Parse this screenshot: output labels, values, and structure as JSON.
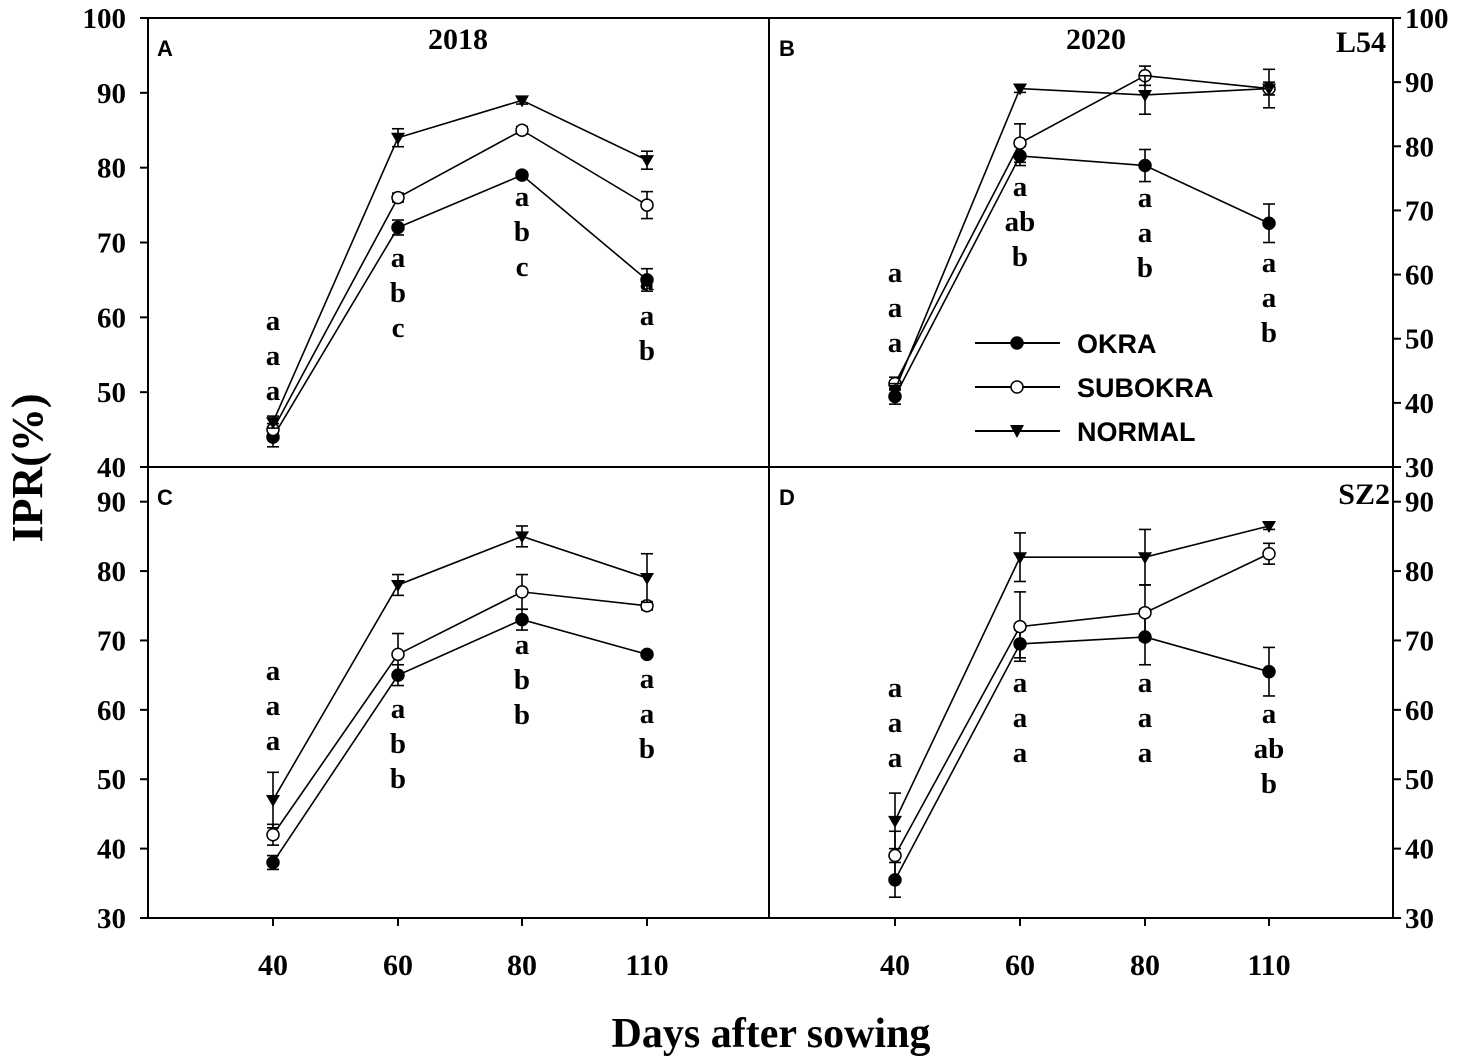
{
  "figure": {
    "ylabel": "IPR(%)",
    "xlabel": "Days after sowing",
    "x_tick_labels": [
      "40",
      "60",
      "80",
      "110"
    ]
  },
  "legend": {
    "placement": "panel B, lower-right",
    "entries": [
      {
        "label": "OKRA",
        "marker": "filled-circle"
      },
      {
        "label": "SUBOKRA",
        "marker": "open-circle"
      },
      {
        "label": "NORMAL",
        "marker": "filled-triangle-down"
      }
    ]
  },
  "chart_data": [
    {
      "panel": "A",
      "title": "2018",
      "subtitle": "",
      "type": "line",
      "y_axis_side": "left",
      "ylim": [
        40,
        100
      ],
      "yticks": [
        "40",
        "50",
        "60",
        "70",
        "80",
        "90",
        "100"
      ],
      "categories": [
        "40",
        "60",
        "80",
        "110"
      ],
      "series": [
        {
          "name": "OKRA",
          "values": [
            44,
            72,
            79,
            65
          ],
          "err": [
            1.3,
            1.0,
            0.4,
            1.5
          ]
        },
        {
          "name": "SUBOKRA",
          "values": [
            45,
            76,
            85,
            75
          ],
          "err": [
            0.8,
            0.6,
            0.5,
            1.8
          ]
        },
        {
          "name": "NORMAL",
          "values": [
            46,
            84,
            89,
            81
          ],
          "err": [
            0.8,
            1.2,
            0.5,
            1.2
          ]
        }
      ],
      "letters": [
        [
          "a",
          "a",
          "a"
        ],
        [
          "a",
          "b",
          "c"
        ],
        [
          "a",
          "b",
          "c"
        ],
        [
          "a",
          "a",
          "b"
        ]
      ]
    },
    {
      "panel": "B",
      "title": "2020",
      "subtitle": "L54",
      "type": "line",
      "y_axis_side": "right",
      "ylim": [
        30,
        100
      ],
      "yticks": [
        "30",
        "40",
        "50",
        "60",
        "70",
        "80",
        "90",
        "100"
      ],
      "categories": [
        "40",
        "60",
        "80",
        "110"
      ],
      "series": [
        {
          "name": "OKRA",
          "values": [
            41,
            78.5,
            77,
            68
          ],
          "err": [
            1.2,
            1.5,
            2.5,
            3.0
          ]
        },
        {
          "name": "SUBOKRA",
          "values": [
            43,
            80.5,
            91,
            89
          ],
          "err": [
            1.0,
            3.0,
            1.5,
            1.0
          ]
        },
        {
          "name": "NORMAL",
          "values": [
            42,
            89,
            88,
            89
          ],
          "err": [
            1.0,
            0.6,
            3.0,
            3.0
          ]
        }
      ],
      "letters": [
        [
          "a",
          "a",
          "a"
        ],
        [
          "a",
          "ab",
          "b"
        ],
        [
          "a",
          "a",
          "b"
        ],
        [
          "a",
          "a",
          "b"
        ]
      ]
    },
    {
      "panel": "C",
      "title": "",
      "subtitle": "",
      "type": "line",
      "y_axis_side": "left",
      "ylim": [
        30,
        95
      ],
      "yticks": [
        "30",
        "40",
        "50",
        "60",
        "70",
        "80",
        "90"
      ],
      "categories": [
        "40",
        "60",
        "80",
        "110"
      ],
      "series": [
        {
          "name": "OKRA",
          "values": [
            38,
            65,
            73,
            68
          ],
          "err": [
            1.0,
            1.5,
            1.5,
            0.4
          ]
        },
        {
          "name": "SUBOKRA",
          "values": [
            42,
            68,
            77,
            75
          ],
          "err": [
            1.5,
            3.0,
            2.5,
            0.6
          ]
        },
        {
          "name": "NORMAL",
          "values": [
            47,
            78,
            85,
            79
          ],
          "err": [
            4.0,
            1.5,
            1.5,
            3.5
          ]
        }
      ],
      "letters": [
        [
          "a",
          "a",
          "a"
        ],
        [
          "a",
          "b",
          "b"
        ],
        [
          "a",
          "b",
          "b"
        ],
        [
          "a",
          "a",
          "b"
        ]
      ]
    },
    {
      "panel": "D",
      "title": "",
      "subtitle": "SZ2",
      "type": "line",
      "y_axis_side": "right",
      "ylim": [
        30,
        95
      ],
      "yticks": [
        "30",
        "40",
        "50",
        "60",
        "70",
        "80",
        "90"
      ],
      "categories": [
        "40",
        "60",
        "80",
        "110"
      ],
      "series": [
        {
          "name": "OKRA",
          "values": [
            35.5,
            69.5,
            70.5,
            65.5
          ],
          "err": [
            2.5,
            2.0,
            4.0,
            3.5
          ]
        },
        {
          "name": "SUBOKRA",
          "values": [
            39,
            72,
            74,
            82.5
          ],
          "err": [
            3.5,
            5.0,
            4.0,
            1.5
          ]
        },
        {
          "name": "NORMAL",
          "values": [
            44,
            82,
            82,
            86.5
          ],
          "err": [
            4.0,
            3.5,
            4.0,
            0.5
          ]
        }
      ],
      "letters": [
        [
          "a",
          "a",
          "a"
        ],
        [
          "a",
          "a",
          "a"
        ],
        [
          "a",
          "a",
          "a"
        ],
        [
          "a",
          "ab",
          "b"
        ]
      ]
    }
  ]
}
